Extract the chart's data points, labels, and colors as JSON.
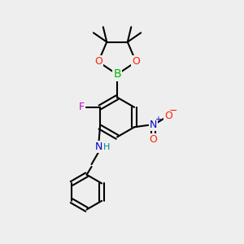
{
  "bg_color": "#eeeeee",
  "bond_color": "#000000",
  "bond_width": 1.5,
  "atom_colors": {
    "B": "#00bb00",
    "O": "#ff2200",
    "F": "#cc00cc",
    "N_amine": "#0000cc",
    "N_nitro": "#0000cc",
    "O_nitro": "#ff2200",
    "H": "#008888",
    "C": "#000000"
  },
  "font_size": 9
}
